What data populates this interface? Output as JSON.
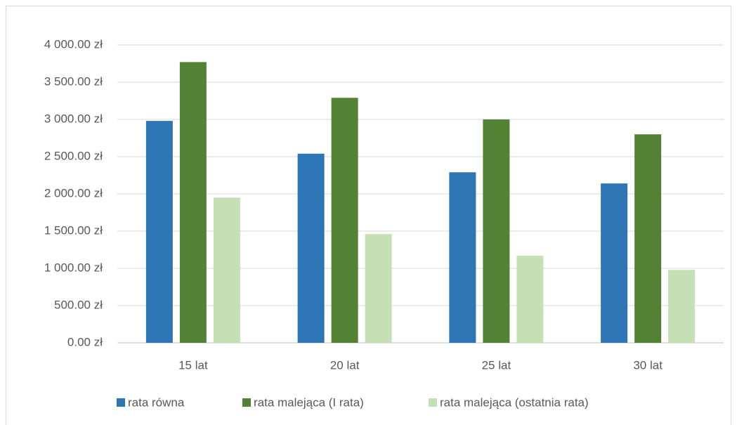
{
  "chart_data": {
    "type": "bar",
    "categories": [
      "15 lat",
      "20 lat",
      "25 lat",
      "30 lat"
    ],
    "series": [
      {
        "name": "rata równa",
        "color": "#2e75b6",
        "values": [
          2980,
          2540,
          2290,
          2140
        ]
      },
      {
        "name": "rata malejąca (I rata)",
        "color": "#548235",
        "values": [
          3770,
          3290,
          3000,
          2800
        ]
      },
      {
        "name": "rata malejąca (ostatnia rata)",
        "color": "#c5e0b4",
        "values": [
          1950,
          1460,
          1170,
          980
        ]
      }
    ],
    "ylim": [
      0,
      4000
    ],
    "yticks": [
      {
        "value": 0,
        "label": "0.00 zł"
      },
      {
        "value": 500,
        "label": "500.00 zł"
      },
      {
        "value": 1000,
        "label": "1 000.00 zł"
      },
      {
        "value": 1500,
        "label": "1 500.00 zł"
      },
      {
        "value": 2000,
        "label": "2 000.00 zł"
      },
      {
        "value": 2500,
        "label": "2 500.00 zł"
      },
      {
        "value": 3000,
        "label": "3 000.00 zł"
      },
      {
        "value": 3500,
        "label": "3 500.00 zł"
      },
      {
        "value": 4000,
        "label": "4 000.00 zł"
      }
    ],
    "grid": true,
    "legend": "bottom"
  }
}
